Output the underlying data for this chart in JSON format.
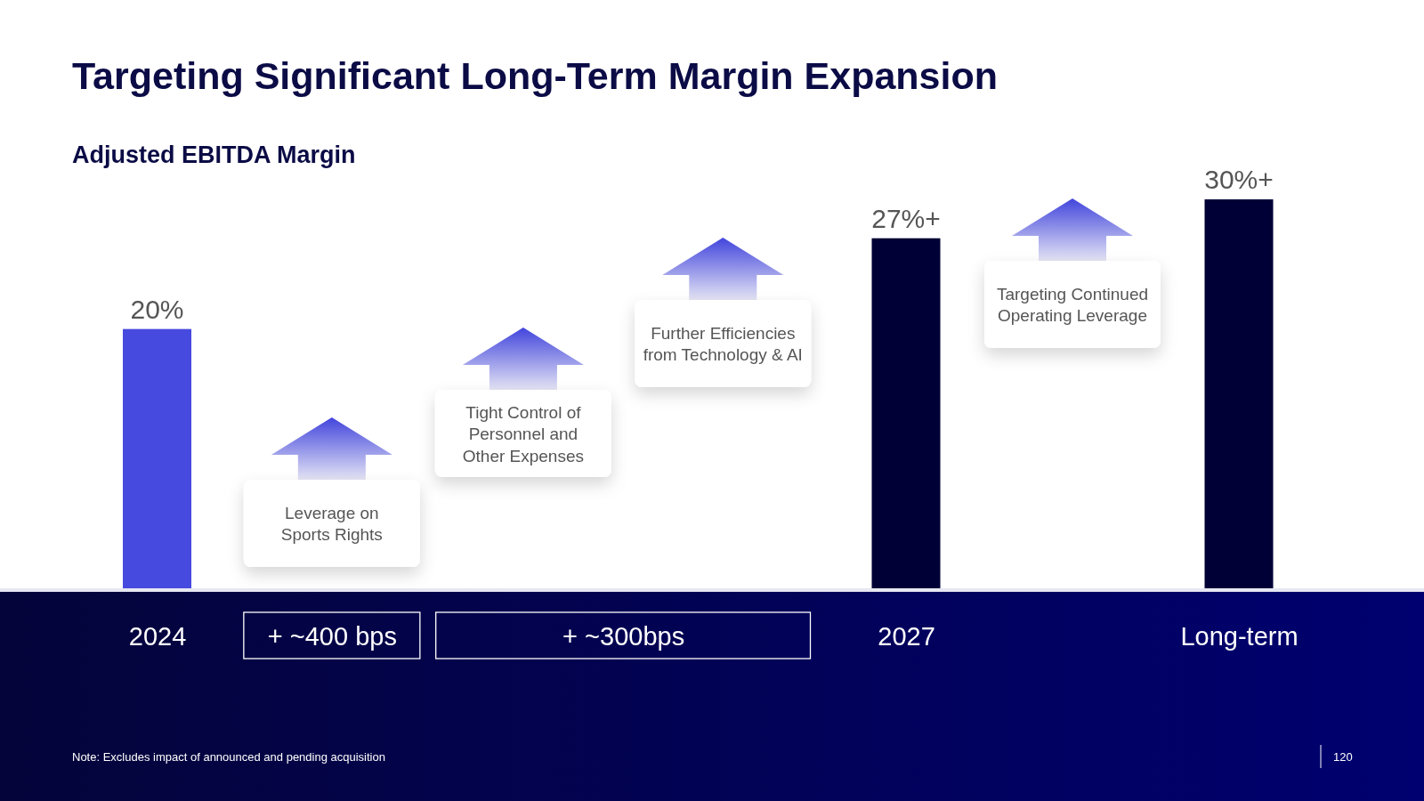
{
  "chart_data": {
    "type": "bar",
    "title": "Targeting Significant Long-Term Margin Expansion",
    "subtitle": "Adjusted EBITDA Margin",
    "categories": [
      "2024",
      "+ ~400 bps",
      "+ ~300bps",
      "2027",
      null,
      "Long-term"
    ],
    "values": [
      20,
      null,
      null,
      27,
      null,
      30
    ],
    "colors": [
      "#474ade",
      null,
      null,
      "#000036",
      null,
      "#000036"
    ],
    "value_labels": [
      "20%",
      null,
      null,
      "27%+",
      null,
      "30%+"
    ],
    "tick_labels": "x",
    "annotations": [
      "Leverage on\nSports Rights",
      "Tight Control of\nPersonnel and\nOther Expenses",
      "Further Efficiencies\nfrom Technology & AI",
      "Targeting Continued\nOperating Leverage",
      "Note: Excludes impact of announced and pending acquisition",
      "120"
    ]
  }
}
